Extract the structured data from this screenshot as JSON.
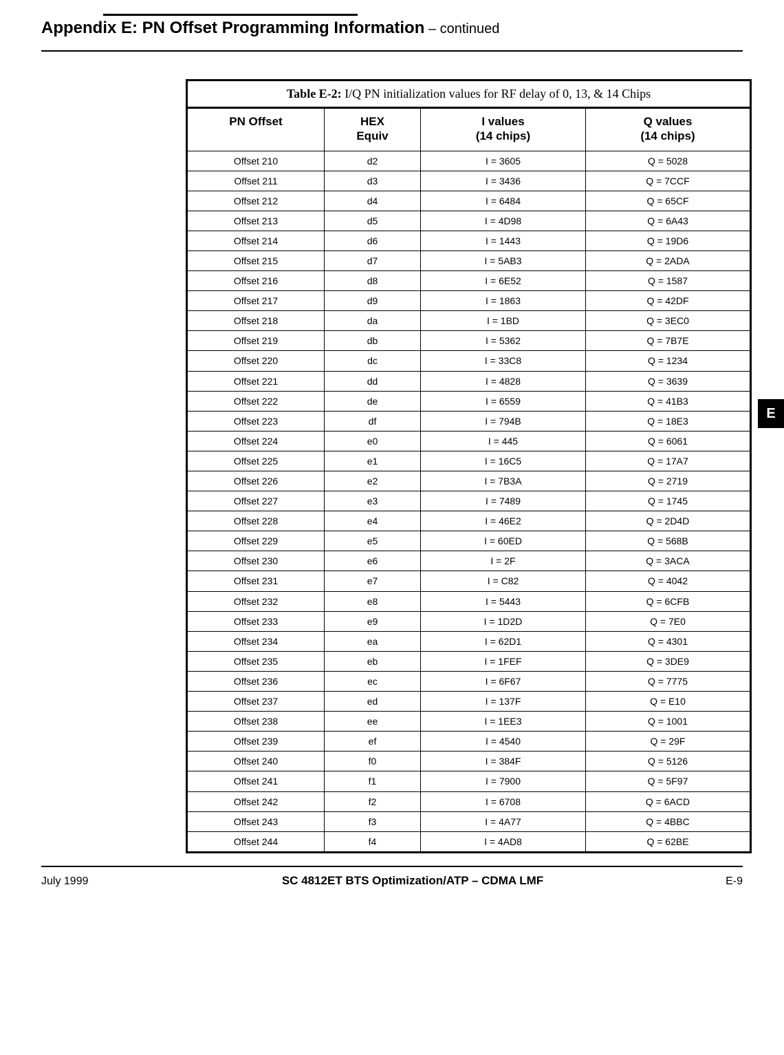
{
  "header": {
    "main": "Appendix E: PN Offset Programming Information",
    "suffix": " – continued"
  },
  "caption": {
    "bold": "Table E-2:",
    "rest": " I/Q PN initialization values for RF delay of 0, 13, & 14  Chips"
  },
  "columns": {
    "c1": "PN Offset",
    "c2": "HEX\nEquiv",
    "c3": "I values\n(14 chips)",
    "c4": "Q values\n(14 chips)"
  },
  "rows": [
    {
      "o": "Offset 210",
      "h": "d2",
      "i": "I = 3605",
      "q": "Q = 5028"
    },
    {
      "o": "Offset 211",
      "h": "d3",
      "i": "I = 3436",
      "q": "Q = 7CCF"
    },
    {
      "o": "Offset 212",
      "h": "d4",
      "i": "I = 6484",
      "q": "Q = 65CF"
    },
    {
      "o": "Offset 213",
      "h": "d5",
      "i": "I = 4D98",
      "q": "Q = 6A43"
    },
    {
      "o": "Offset 214",
      "h": "d6",
      "i": "I = 1443",
      "q": "Q = 19D6"
    },
    {
      "o": "Offset 215",
      "h": "d7",
      "i": "I = 5AB3",
      "q": "Q = 2ADA"
    },
    {
      "o": "Offset 216",
      "h": "d8",
      "i": "I = 6E52",
      "q": "Q = 1587"
    },
    {
      "o": "Offset 217",
      "h": "d9",
      "i": "I = 1863",
      "q": "Q = 42DF"
    },
    {
      "o": "Offset 218",
      "h": "da",
      "i": "I =  1BD",
      "q": "Q = 3EC0"
    },
    {
      "o": "Offset 219",
      "h": "db",
      "i": "I = 5362",
      "q": "Q = 7B7E"
    },
    {
      "o": "Offset 220",
      "h": "dc",
      "i": "I = 33C8",
      "q": "Q = 1234"
    },
    {
      "o": "Offset 221",
      "h": "dd",
      "i": "I = 4828",
      "q": "Q = 3639"
    },
    {
      "o": "Offset 222",
      "h": "de",
      "i": "I = 6559",
      "q": "Q = 41B3"
    },
    {
      "o": "Offset 223",
      "h": "df",
      "i": "I = 794B",
      "q": "Q = 18E3"
    },
    {
      "o": "Offset 224",
      "h": "e0",
      "i": "I =  445",
      "q": "Q = 6061"
    },
    {
      "o": "Offset 225",
      "h": "e1",
      "i": "I = 16C5",
      "q": "Q = 17A7"
    },
    {
      "o": "Offset 226",
      "h": "e2",
      "i": "I = 7B3A",
      "q": "Q = 2719"
    },
    {
      "o": "Offset 227",
      "h": "e3",
      "i": "I = 7489",
      "q": "Q = 1745"
    },
    {
      "o": "Offset 228",
      "h": "e4",
      "i": "I = 46E2",
      "q": "Q = 2D4D"
    },
    {
      "o": "Offset 229",
      "h": "e5",
      "i": "I = 60ED",
      "q": "Q = 568B"
    },
    {
      "o": "Offset 230",
      "h": "e6",
      "i": "I =   2F",
      "q": "Q = 3ACA"
    },
    {
      "o": "Offset 231",
      "h": "e7",
      "i": "I =  C82",
      "q": "Q = 4042"
    },
    {
      "o": "Offset 232",
      "h": "e8",
      "i": "I = 5443",
      "q": "Q = 6CFB"
    },
    {
      "o": "Offset 233",
      "h": "e9",
      "i": "I = 1D2D",
      "q": "Q =  7E0"
    },
    {
      "o": "Offset 234",
      "h": "ea",
      "i": "I = 62D1",
      "q": "Q = 4301"
    },
    {
      "o": "Offset 235",
      "h": "eb",
      "i": "I = 1FEF",
      "q": "Q = 3DE9"
    },
    {
      "o": "Offset 236",
      "h": "ec",
      "i": "I = 6F67",
      "q": "Q = 7775"
    },
    {
      "o": "Offset 237",
      "h": "ed",
      "i": "I = 137F",
      "q": "Q =  E10"
    },
    {
      "o": "Offset 238",
      "h": "ee",
      "i": "I = 1EE3",
      "q": "Q = 1001"
    },
    {
      "o": "Offset 239",
      "h": "ef",
      "i": "I = 4540",
      "q": "Q =  29F"
    },
    {
      "o": "Offset 240",
      "h": "f0",
      "i": "I = 384F",
      "q": "Q = 5126"
    },
    {
      "o": "Offset 241",
      "h": "f1",
      "i": "I = 7900",
      "q": "Q = 5F97"
    },
    {
      "o": "Offset 242",
      "h": "f2",
      "i": "I = 6708",
      "q": "Q = 6ACD"
    },
    {
      "o": "Offset 243",
      "h": "f3",
      "i": "I = 4A77",
      "q": "Q = 4BBC"
    },
    {
      "o": "Offset 244",
      "h": "f4",
      "i": "I = 4AD8",
      "q": "Q = 62BE"
    }
  ],
  "side_tab": "E",
  "footer": {
    "date": "July  1999",
    "title": "SC 4812ET BTS Optimization/ATP – CDMA LMF",
    "page": "E-9"
  }
}
